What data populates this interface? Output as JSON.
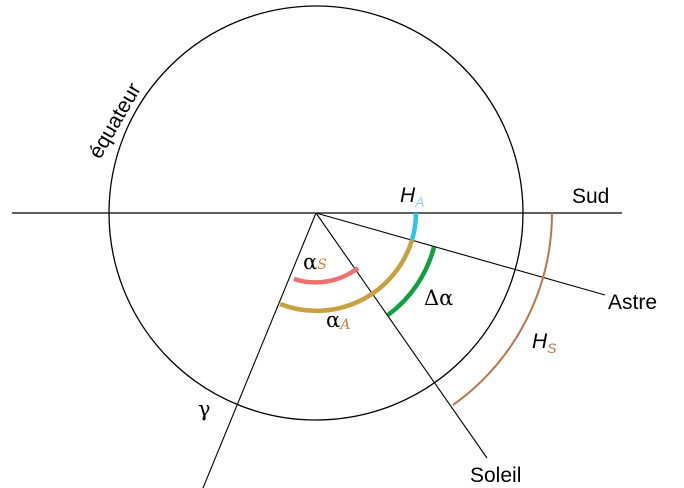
{
  "diagram": {
    "labels": {
      "equator": "équateur",
      "south": "Sud",
      "star": "Astre",
      "sun": "Soleil",
      "gamma": "γ",
      "hour_angle_star": {
        "main": "H",
        "sub": "A"
      },
      "hour_angle_sun": {
        "main": "H",
        "sub": "S"
      },
      "ra_sun": {
        "main": "α",
        "sub": "S"
      },
      "ra_star": {
        "main": "α",
        "sub": "A"
      },
      "delta_alpha": "Δα"
    },
    "colors": {
      "line": "#000000",
      "hour_angle_star": "#29c4f0",
      "hour_angle_sun": "#b8764a",
      "ra_sun": "#f07070",
      "ra_sun_label": "#f07820",
      "ra_star": "#c8a040",
      "ra_star_label": "#b8864a",
      "delta_alpha": "#10a040"
    }
  }
}
